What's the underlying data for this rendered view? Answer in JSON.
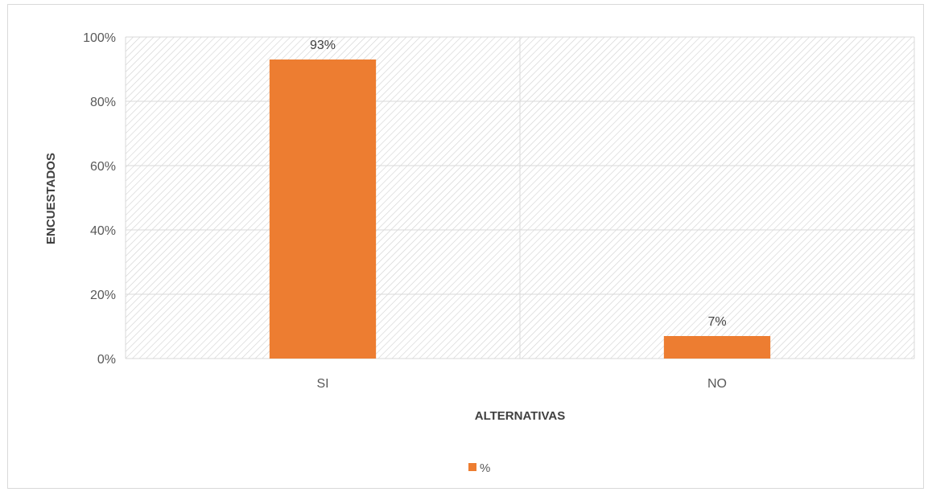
{
  "chart_data": {
    "type": "bar",
    "categories": [
      "SI",
      "NO"
    ],
    "series": [
      {
        "name": "%",
        "values": [
          93,
          7
        ],
        "labels": [
          "93%",
          "7%"
        ]
      }
    ],
    "title": "",
    "xlabel": "ALTERNATIVAS",
    "ylabel": "ENCUESTADOS",
    "ylim": [
      0,
      100
    ],
    "yticks": [
      "0%",
      "20%",
      "40%",
      "60%",
      "80%",
      "100%"
    ],
    "grid": true,
    "legend": "bottom",
    "colors": {
      "bar": "#ed7d31",
      "grid": "#d9d9d9",
      "hatch": "#d0d0d0"
    }
  }
}
